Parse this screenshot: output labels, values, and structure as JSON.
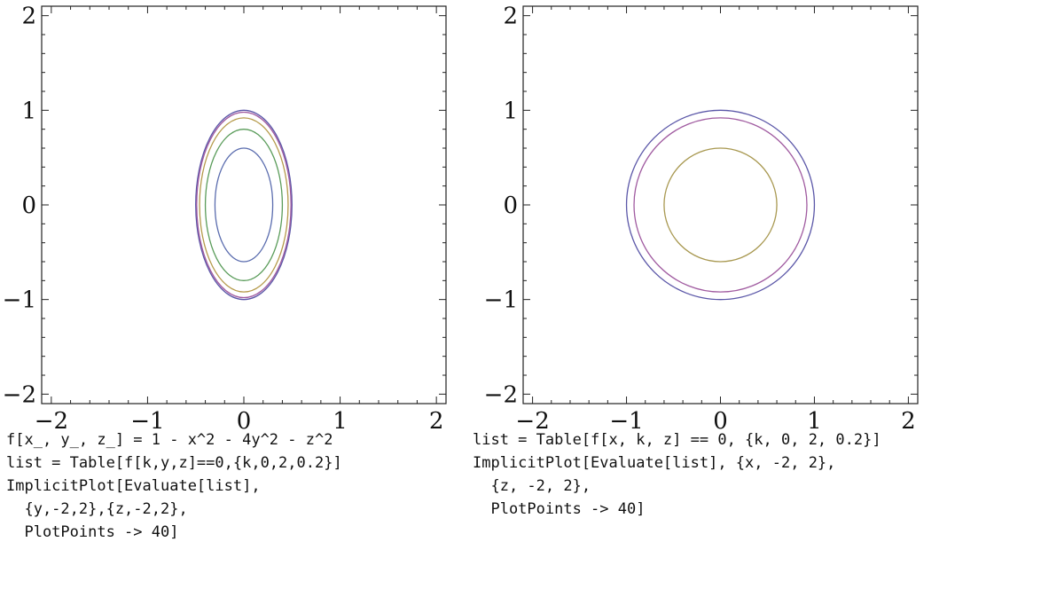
{
  "chart_data": [
    {
      "type": "line",
      "xlim": [
        -2.1,
        2.1
      ],
      "ylim": [
        -2.1,
        2.1
      ],
      "xticks": [
        -2,
        -1,
        0,
        1,
        2
      ],
      "yticks": [
        -2,
        -1,
        0,
        1,
        2
      ],
      "xtick_labels": [
        "−2",
        "−1",
        "0",
        "1",
        "2"
      ],
      "ytick_labels": [
        "2",
        "1",
        "0",
        "−1",
        "−2"
      ],
      "curves": [
        {
          "rx": 0.5,
          "ry": 1.0,
          "color": "#5b57a8"
        },
        {
          "rx": 0.49,
          "ry": 0.98,
          "color": "#a05ba0"
        },
        {
          "rx": 0.46,
          "ry": 0.92,
          "color": "#b59a4a"
        },
        {
          "rx": 0.4,
          "ry": 0.8,
          "color": "#5a9c5a"
        },
        {
          "rx": 0.3,
          "ry": 0.6,
          "color": "#5a6cae"
        }
      ]
    },
    {
      "type": "line",
      "xlim": [
        -2.1,
        2.1
      ],
      "ylim": [
        -2.1,
        2.1
      ],
      "xticks": [
        -2,
        -1,
        0,
        1,
        2
      ],
      "yticks": [
        -2,
        -1,
        0,
        1,
        2
      ],
      "xtick_labels": [
        "−2",
        "−1",
        "0",
        "1",
        "2"
      ],
      "ytick_labels": [
        "2",
        "1",
        "0",
        "−1",
        "−2"
      ],
      "curves": [
        {
          "rx": 1.0,
          "ry": 1.0,
          "color": "#5b57a8"
        },
        {
          "rx": 0.92,
          "ry": 0.92,
          "color": "#a05ba0"
        },
        {
          "rx": 0.6,
          "ry": 0.6,
          "color": "#a89850"
        }
      ]
    }
  ],
  "code_left": "f[x_, y_, z_] = 1 - x^2 - 4y^2 - z^2\nlist = Table[f[k,y,z]==0,{k,0,2,0.2}]\nImplicitPlot[Evaluate[list],\n  {y,-2,2},{z,-2,2},\n  PlotPoints -> 40]",
  "code_right": "list = Table[f[x, k, z] == 0, {k, 0, 2, 0.2}]\nImplicitPlot[Evaluate[list], {x, -2, 2},\n  {z, -2, 2},\n  PlotPoints -> 40]"
}
